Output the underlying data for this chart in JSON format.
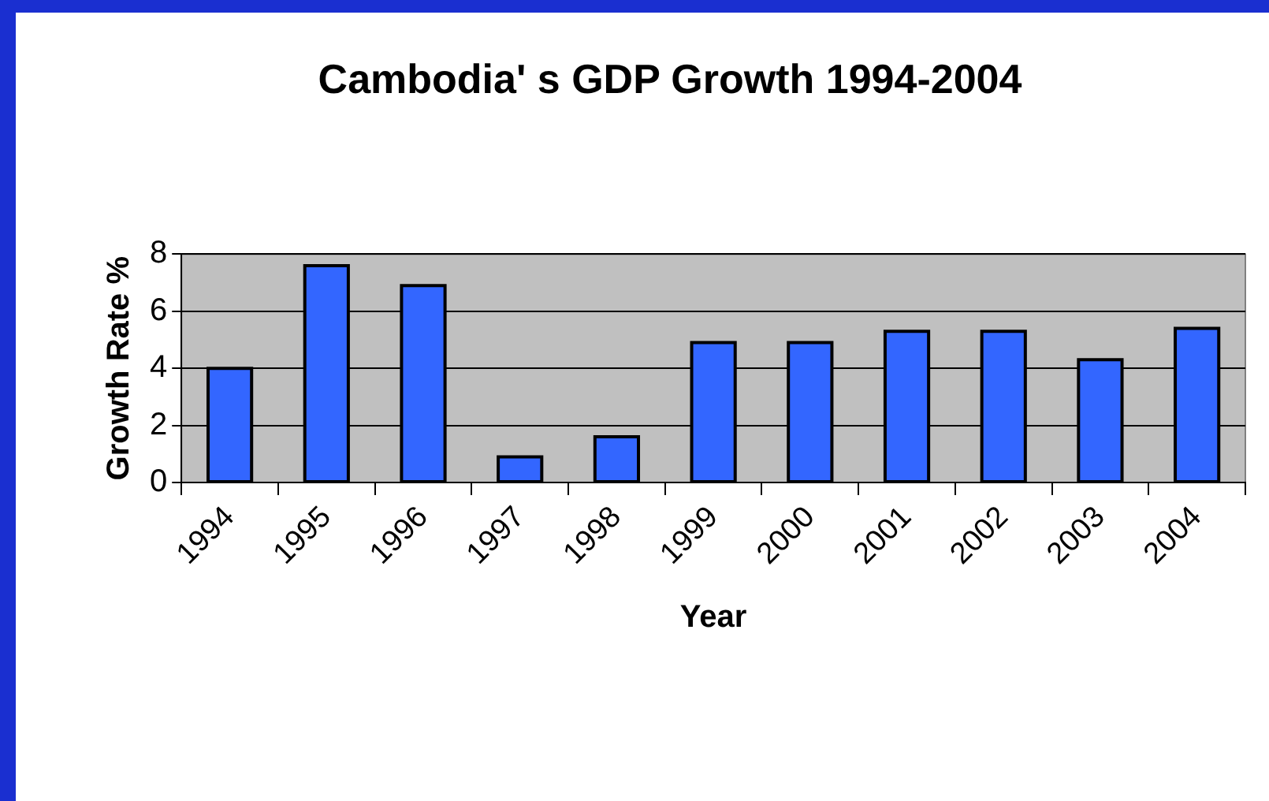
{
  "chart_data": {
    "type": "bar",
    "title": "Cambodia' s GDP Growth 1994-2004",
    "xlabel": "Year",
    "ylabel": "Growth Rate %",
    "categories": [
      "1994",
      "1995",
      "1996",
      "1997",
      "1998",
      "1999",
      "2000",
      "2001",
      "2002",
      "2003",
      "2004"
    ],
    "values": [
      4.0,
      7.6,
      6.9,
      0.9,
      1.6,
      4.9,
      4.9,
      5.3,
      5.3,
      4.3,
      5.4
    ],
    "color": "#3366ff",
    "ylim": [
      0,
      8
    ],
    "yticks": [
      0,
      2,
      4,
      6,
      8
    ],
    "grid": "y",
    "legend": false
  }
}
